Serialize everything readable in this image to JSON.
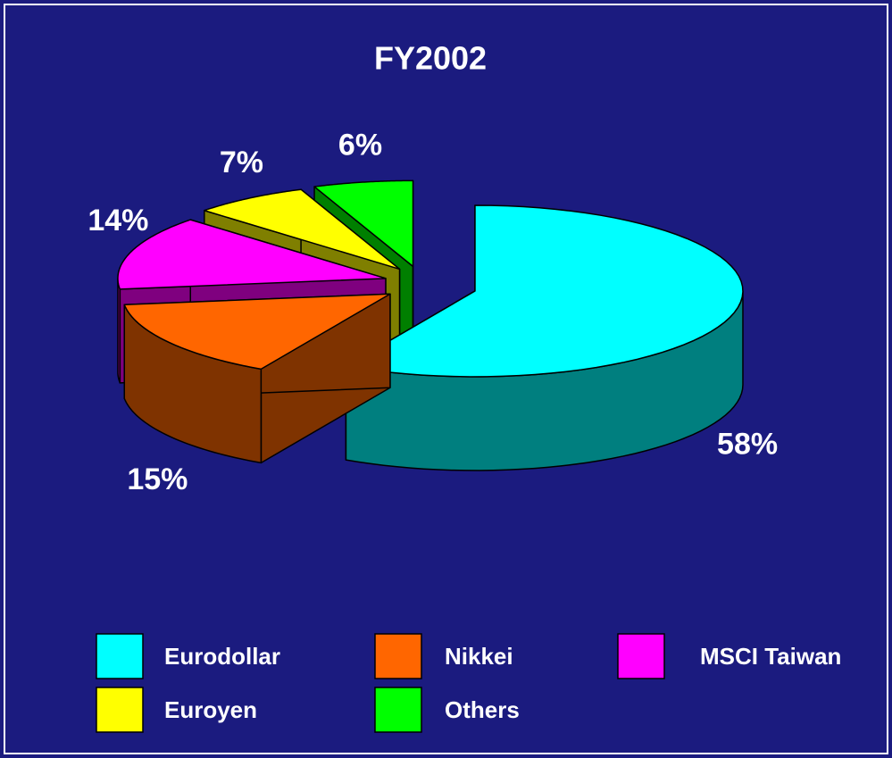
{
  "chart_data": {
    "type": "pie",
    "title": "FY2002",
    "categories": [
      "Eurodollar",
      "Nikkei",
      "MSCI Taiwan",
      "Euroyen",
      "Others"
    ],
    "values": [
      58,
      15,
      14,
      7,
      6
    ],
    "value_labels": [
      "58%",
      "15%",
      "14%",
      "7%",
      "6%"
    ],
    "colors": [
      "#00ffff",
      "#ff6600",
      "#ff00ff",
      "#ffff00",
      "#00ff00"
    ],
    "legend": "bottom"
  }
}
